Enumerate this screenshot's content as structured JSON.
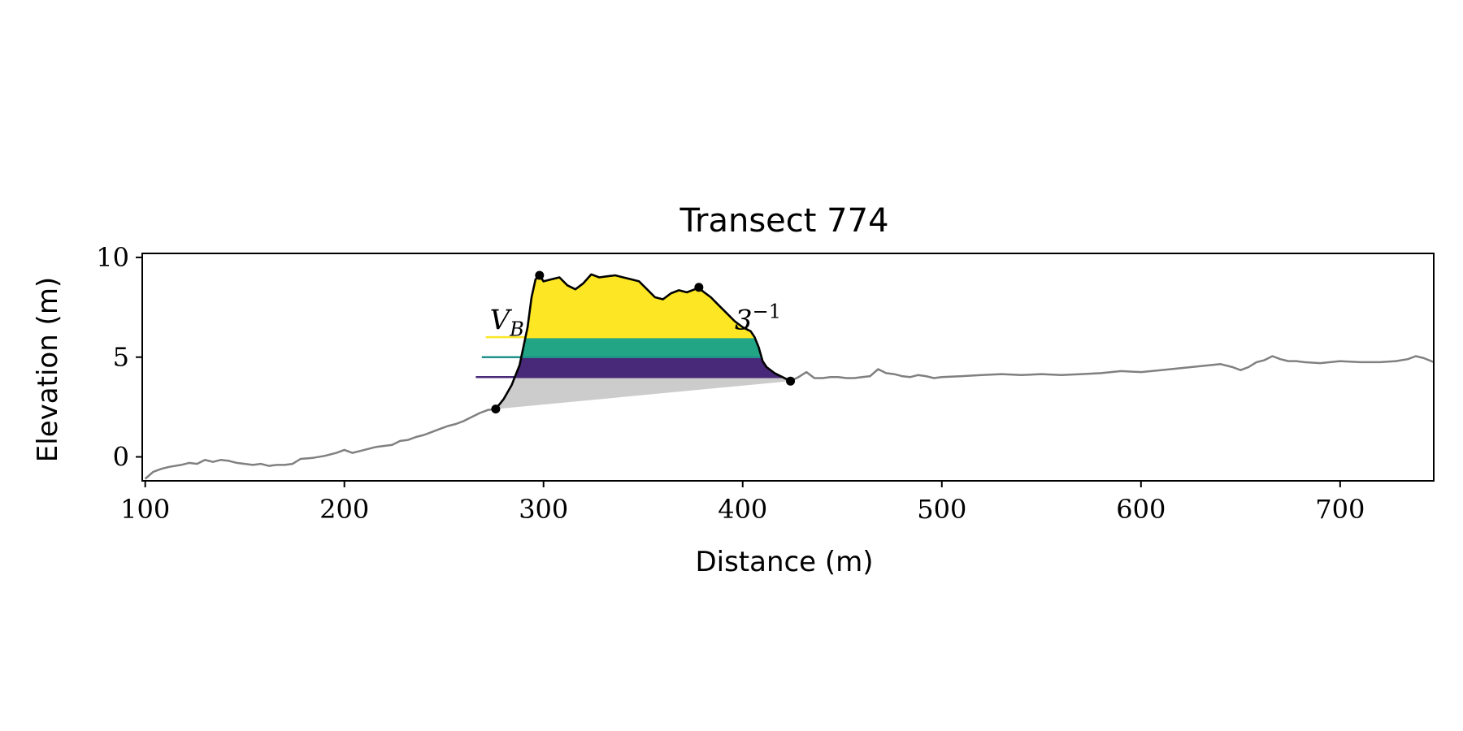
{
  "chart_data": {
    "type": "line",
    "title": "Transect 774",
    "xlabel": "Distance (m)",
    "ylabel": "Elevation (m)",
    "xlim": [
      98.5,
      747
    ],
    "ylim": [
      -1.2,
      10.2
    ],
    "xticks": [
      100,
      200,
      300,
      400,
      500,
      600,
      700
    ],
    "yticks": [
      0,
      5,
      10
    ],
    "grid": false,
    "colors": {
      "profile": "#808080",
      "dune_outline": "#000000",
      "base_fill": "#cccccc",
      "layer_low": "#482878",
      "layer_mid": "#21a585",
      "layer_high": "#fde725",
      "marker": "#000000"
    },
    "profile": {
      "x": [
        100,
        104,
        108,
        112,
        118,
        122,
        126,
        130,
        134,
        138,
        142,
        146,
        150,
        154,
        158,
        162,
        166,
        170,
        174,
        178,
        184,
        190,
        196,
        200,
        204,
        208,
        212,
        216,
        220,
        224,
        228,
        232,
        236,
        240,
        244,
        248,
        252,
        256,
        260,
        264,
        268,
        272,
        276,
        424,
        428,
        432,
        436,
        440,
        444,
        448,
        452,
        456,
        460,
        464,
        468,
        472,
        476,
        480,
        484,
        488,
        492,
        496,
        500,
        510,
        520,
        530,
        540,
        550,
        560,
        570,
        580,
        590,
        600,
        610,
        620,
        630,
        640,
        646,
        650,
        654,
        658,
        662,
        666,
        670,
        674,
        678,
        682,
        690,
        700,
        710,
        720,
        728,
        734,
        738,
        742,
        747
      ],
      "y": [
        -1.1,
        -0.75,
        -0.6,
        -0.5,
        -0.4,
        -0.3,
        -0.35,
        -0.15,
        -0.25,
        -0.15,
        -0.2,
        -0.3,
        -0.35,
        -0.4,
        -0.35,
        -0.45,
        -0.4,
        -0.4,
        -0.35,
        -0.1,
        -0.05,
        0.05,
        0.2,
        0.35,
        0.2,
        0.3,
        0.4,
        0.5,
        0.55,
        0.6,
        0.8,
        0.85,
        1.0,
        1.1,
        1.25,
        1.4,
        1.55,
        1.65,
        1.8,
        2.0,
        2.2,
        2.35,
        2.4,
        3.8,
        4.0,
        4.25,
        3.95,
        3.95,
        4.0,
        4.0,
        3.95,
        3.95,
        4.0,
        4.05,
        4.4,
        4.2,
        4.15,
        4.05,
        4.0,
        4.1,
        4.05,
        3.95,
        4.0,
        4.05,
        4.1,
        4.15,
        4.1,
        4.15,
        4.1,
        4.15,
        4.2,
        4.3,
        4.25,
        4.35,
        4.45,
        4.55,
        4.65,
        4.5,
        4.35,
        4.5,
        4.75,
        4.85,
        5.05,
        4.9,
        4.8,
        4.8,
        4.75,
        4.7,
        4.8,
        4.75,
        4.75,
        4.8,
        4.9,
        5.05,
        4.95,
        4.75
      ]
    },
    "dune": {
      "x": [
        276,
        280,
        284,
        288,
        292,
        294,
        296,
        298,
        300,
        304,
        308,
        312,
        316,
        320,
        324,
        328,
        332,
        336,
        340,
        344,
        348,
        352,
        356,
        360,
        364,
        368,
        372,
        376,
        378,
        380,
        384,
        388,
        392,
        396,
        400,
        404,
        406,
        408,
        410,
        412,
        416,
        420,
        424
      ],
      "y": [
        2.4,
        2.9,
        3.6,
        4.6,
        6.5,
        8.0,
        8.9,
        9.1,
        8.8,
        8.9,
        9.0,
        8.6,
        8.4,
        8.7,
        9.15,
        9.0,
        9.05,
        9.1,
        9.0,
        8.9,
        8.8,
        8.4,
        8.0,
        7.9,
        8.2,
        8.35,
        8.25,
        8.4,
        8.5,
        8.3,
        8.0,
        7.6,
        7.2,
        6.8,
        6.5,
        6.3,
        6.0,
        5.5,
        4.8,
        4.5,
        4.2,
        4.0,
        3.8
      ]
    },
    "toe": {
      "x": 276,
      "y": 2.4
    },
    "crest": {
      "x": 298,
      "y": 9.1
    },
    "heel_crest": {
      "x": 378,
      "y": 8.5
    },
    "heel": {
      "x": 424,
      "y": 3.8
    },
    "levels": [
      {
        "elevation": 4.0,
        "x_start": 266
      },
      {
        "elevation": 5.0,
        "x_start": 269
      },
      {
        "elevation": 6.0,
        "x_start": 271
      }
    ],
    "annotations": [
      {
        "text": "V",
        "subscript": "B",
        "x": 273,
        "y": 6.4
      },
      {
        "text": "3",
        "superscript": "−1",
        "x": 396,
        "y": 6.4
      }
    ]
  }
}
